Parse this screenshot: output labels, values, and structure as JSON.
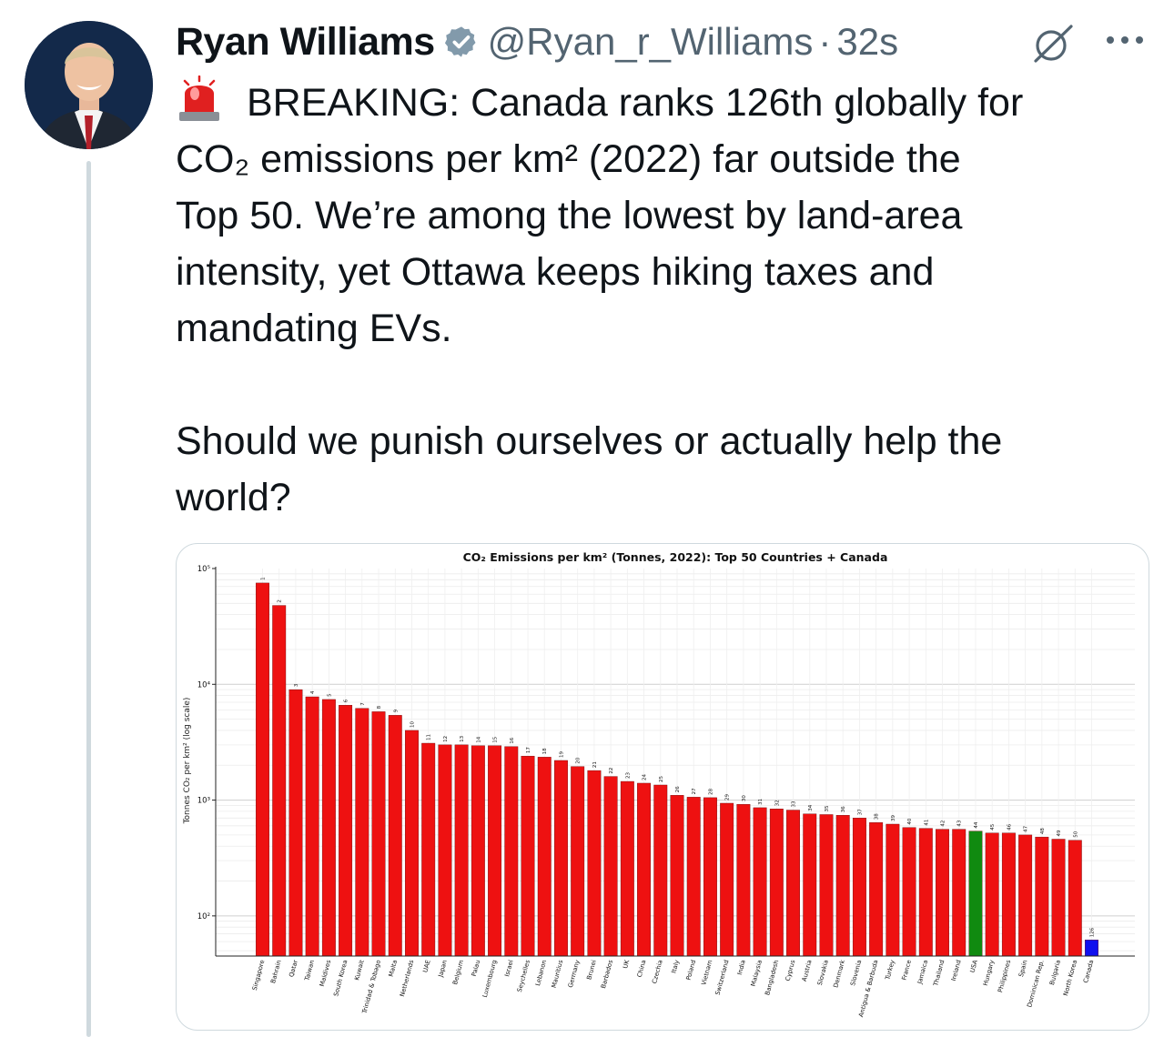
{
  "author": {
    "name": "Ryan Williams",
    "handle": "@Ryan_r_Williams",
    "separator": "·",
    "time": "32s"
  },
  "icons": {
    "avatar": "profile-photo",
    "verified": "verified-badge-icon",
    "grok": "grok-icon",
    "more": "more-options-icon",
    "siren": "police-light-emoji"
  },
  "colors": {
    "bar": "#ee1111",
    "usa_bar": "#108a10",
    "canada_bar": "#1010ee",
    "verified": "#829aab",
    "secondary_text": "#536471"
  },
  "tweet": {
    "lines": [
      "BREAKING: Canada ranks 126th globally for",
      "CO₂ emissions per km² (2022) far outside the",
      "Top 50. We’re among the lowest by land-area",
      "intensity, yet Ottawa keeps hiking taxes and",
      "mandating EVs."
    ],
    "question_lines": [
      "Should we punish ourselves or actually help the",
      "world?"
    ]
  },
  "chart_data": {
    "type": "bar",
    "title": "CO₂ Emissions per km² (Tonnes, 2022): Top 50 Countries + Canada",
    "xlabel": "",
    "ylabel": "Tonnes CO₂ per km² (log scale)",
    "yscale": "log",
    "ylim": [
      45,
      100000
    ],
    "yticks": [
      "10²",
      "10³",
      "10⁴",
      "10⁵"
    ],
    "grid": true,
    "categories": [
      "Singapore",
      "Bahrain",
      "Qatar",
      "Taiwan",
      "Maldives",
      "South Korea",
      "Kuwait",
      "Trinidad & Tobago",
      "Malta",
      "Netherlands",
      "UAE",
      "Japan",
      "Belgium",
      "Palau",
      "Luxembourg",
      "Israel",
      "Seychelles",
      "Lebanon",
      "Mauritius",
      "Germany",
      "Brunei",
      "Barbados",
      "UK",
      "China",
      "Czechia",
      "Italy",
      "Poland",
      "Vietnam",
      "Switzerland",
      "India",
      "Malaysia",
      "Bangladesh",
      "Cyprus",
      "Austria",
      "Slovakia",
      "Denmark",
      "Slovenia",
      "Antigua & Barbuda",
      "Turkey",
      "France",
      "Jamaica",
      "Thailand",
      "Ireland",
      "USA",
      "Hungary",
      "Philippines",
      "Spain",
      "Dominican Rep.",
      "Bulgaria",
      "North Korea",
      "Canada"
    ],
    "ranks": [
      "1",
      "2",
      "3",
      "4",
      "5",
      "6",
      "7",
      "8",
      "9",
      "10",
      "11",
      "12",
      "13",
      "14",
      "15",
      "16",
      "17",
      "18",
      "19",
      "20",
      "21",
      "22",
      "23",
      "24",
      "25",
      "26",
      "27",
      "28",
      "29",
      "30",
      "31",
      "32",
      "33",
      "34",
      "35",
      "36",
      "37",
      "38",
      "39",
      "40",
      "41",
      "42",
      "43",
      "44",
      "45",
      "46",
      "47",
      "48",
      "49",
      "50",
      "126"
    ],
    "values": [
      75000,
      48000,
      9000,
      7800,
      7400,
      6600,
      6200,
      5800,
      5400,
      4000,
      3100,
      3000,
      3000,
      2950,
      2950,
      2900,
      2400,
      2350,
      2200,
      1950,
      1800,
      1600,
      1450,
      1400,
      1350,
      1100,
      1060,
      1050,
      940,
      920,
      860,
      840,
      820,
      760,
      750,
      740,
      700,
      640,
      620,
      580,
      570,
      560,
      560,
      540,
      520,
      520,
      500,
      480,
      460,
      450,
      62
    ],
    "highlight": {
      "USA": "usa",
      "Canada": "canada"
    }
  }
}
